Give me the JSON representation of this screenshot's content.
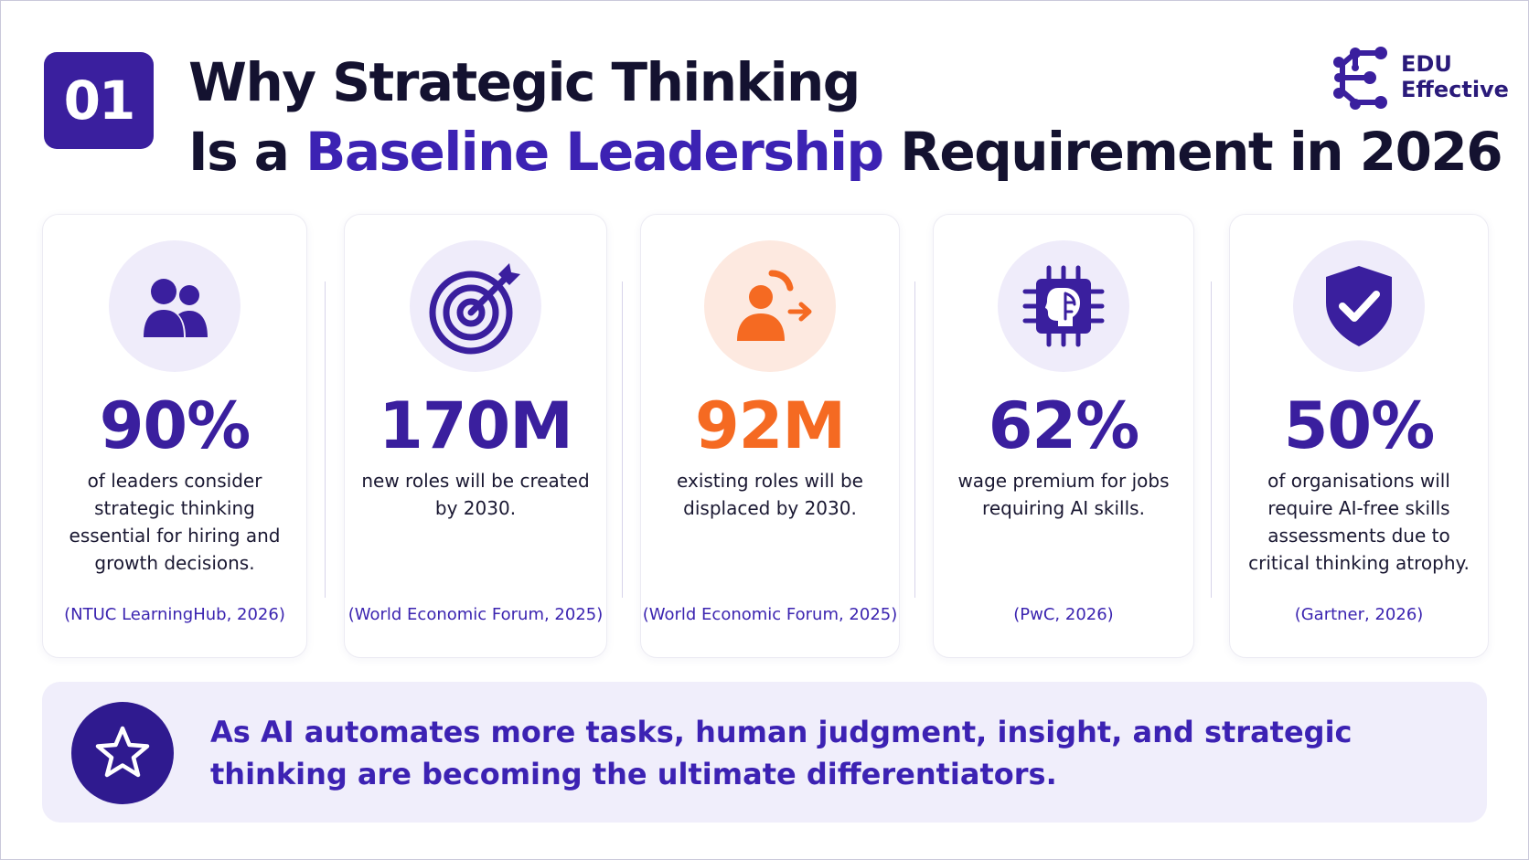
{
  "header": {
    "badge": "01",
    "title_line1": "Why Strategic Thinking",
    "title_line2_pre": "Is a ",
    "title_line2_highlight": "Baseline Leadership",
    "title_line2_post": " Requirement in 2026"
  },
  "logo": {
    "line1": "EDU",
    "line2": "Effective",
    "icon": "network-nodes-icon"
  },
  "colors": {
    "primary": "#3a1f9e",
    "highlight": "#3c22b3",
    "accent_orange": "#f56a22",
    "icon_bg": "#efecfa",
    "icon_bg_orange": "#fde9e0",
    "banner_bg": "#f0eefb"
  },
  "stats": [
    {
      "icon": "people-icon",
      "value": "90%",
      "description": "of leaders consider strategic thinking essential for hiring and growth decisions.",
      "source": "(NTUC LearningHub, 2026)"
    },
    {
      "icon": "target-icon",
      "value": "170M",
      "description": "new roles will be created by 2030.",
      "source": "(World Economic Forum, 2025)"
    },
    {
      "icon": "person-displaced-icon",
      "value": "92M",
      "description": "existing roles will be displaced by 2030.",
      "source": "(World Economic Forum, 2025)"
    },
    {
      "icon": "ai-chip-icon",
      "value": "62%",
      "description": "wage premium for jobs requiring AI skills.",
      "source": "(PwC, 2026)"
    },
    {
      "icon": "shield-check-icon",
      "value": "50%",
      "description": "of organisations will require AI-free skills assessments due to critical thinking atrophy.",
      "source": "(Gartner, 2026)"
    }
  ],
  "banner": {
    "icon": "star-icon",
    "text": "As AI automates more tasks, human judgment, insight, and strategic thinking are becoming the ultimate differentiators."
  }
}
